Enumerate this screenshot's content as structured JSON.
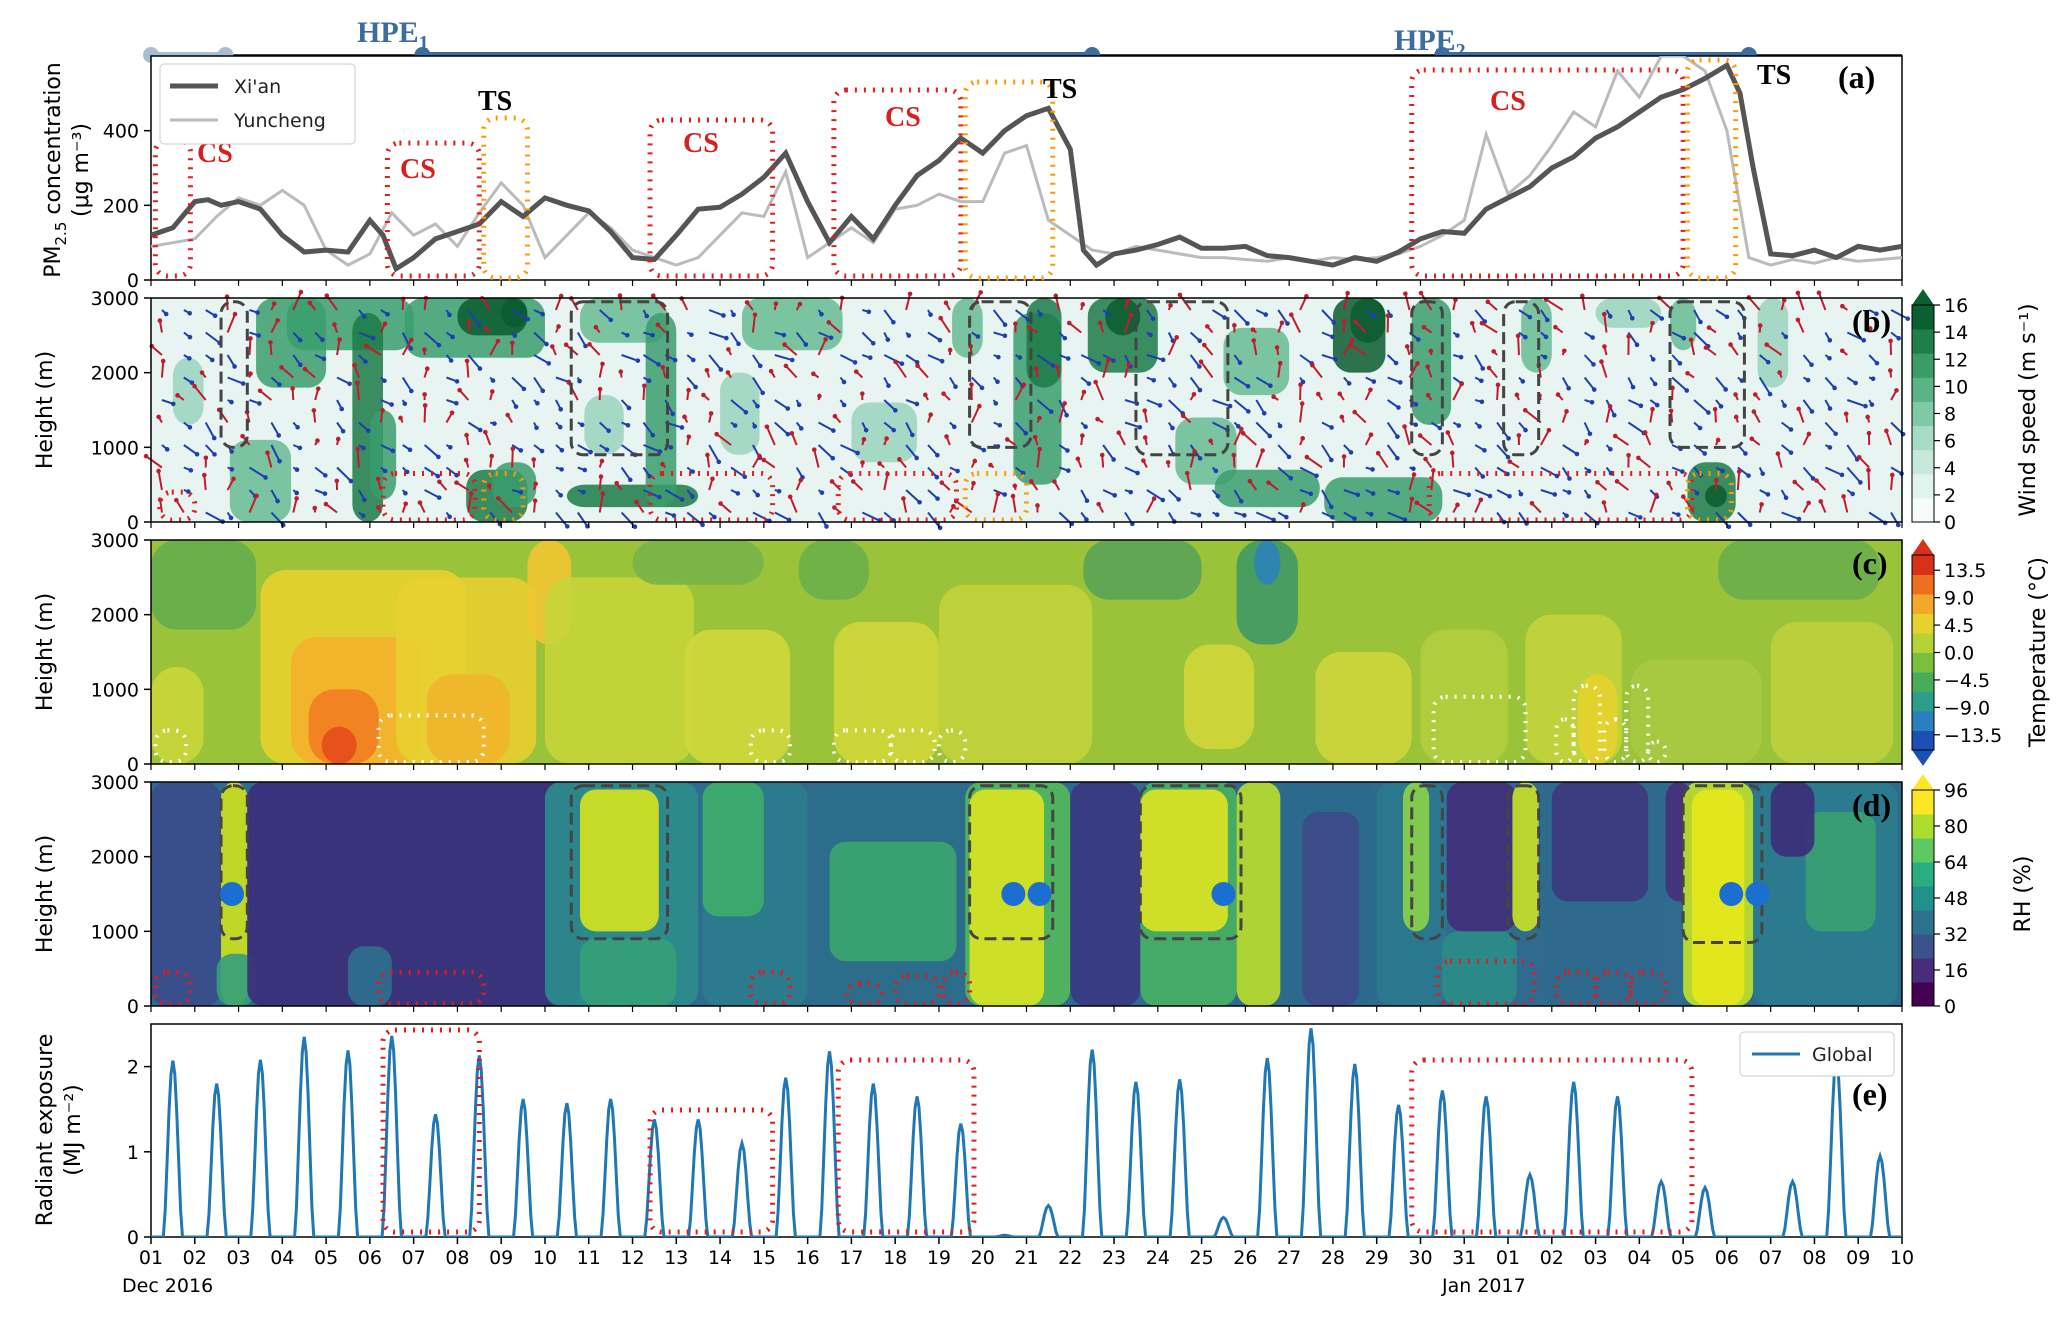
{
  "figure": {
    "date_start_label": "Dec  2016",
    "date_jan_label": "Jan  2017",
    "day_ticks": [
      "01",
      "02",
      "03",
      "04",
      "05",
      "06",
      "07",
      "08",
      "09",
      "10",
      "11",
      "12",
      "13",
      "14",
      "15",
      "16",
      "17",
      "18",
      "19",
      "20",
      "21",
      "22",
      "23",
      "24",
      "25",
      "26",
      "27",
      "28",
      "29",
      "30",
      "31",
      "01",
      "02",
      "03",
      "04",
      "05",
      "06",
      "07",
      "08",
      "09",
      "10"
    ]
  },
  "hpe": {
    "labels": [
      "HPE",
      "HPE"
    ],
    "subscripts": [
      "1",
      "2"
    ],
    "periods": [
      [
        6.2,
        21.5
      ],
      [
        29.5,
        36.5
      ]
    ],
    "pre_period": [
      0,
      1.7
    ]
  },
  "colors": {
    "xian": "#555555",
    "yuncheng": "#bbbbbb",
    "global": "#1f77b4",
    "cs_box": "#e41a1c",
    "ts_box": "#ff9900",
    "grey_box": "#444444",
    "hpe_line": "#3d6d9e",
    "wind_red": "#c21b2d",
    "wind_blue": "#1e3fb0",
    "rh_dot": "#1a6fd0"
  },
  "panels": {
    "a": {
      "label": "(a)",
      "ylabel_line1": "PM",
      "ylabel_sub": "2.5",
      "ylabel_rest": " concentration",
      "ylabel_line2": "(μg m⁻³)"
    },
    "b": {
      "label": "(b)",
      "ylabel": "Height (m)",
      "cbar_label": "Wind speed (m s⁻¹)"
    },
    "c": {
      "label": "(c)",
      "ylabel": "Height (m)",
      "cbar_label": "Temperature (°C)"
    },
    "d": {
      "label": "(d)",
      "ylabel": "Height (m)",
      "cbar_label": "RH (%)"
    },
    "e": {
      "label": "(e)",
      "ylabel_line1": "Radiant exposure",
      "ylabel_line2": "(MJ m⁻²)"
    }
  },
  "annotations": {
    "cs": "CS",
    "ts": "TS"
  },
  "legend_a": [
    "Xi'an",
    "Yuncheng"
  ],
  "legend_e": [
    "Global"
  ],
  "chart_data": [
    {
      "panel": "a",
      "type": "line",
      "xlabel": "",
      "ylabel": "PM2.5 concentration (μg m⁻³)",
      "ylim": [
        0,
        600
      ],
      "yticks": [
        "0",
        "200",
        "400"
      ],
      "series": [
        {
          "name": "Xi'an",
          "x": [
            0,
            0.5,
            1,
            1.3,
            1.6,
            2,
            2.5,
            3,
            3.5,
            4,
            4.5,
            5,
            5.3,
            5.6,
            6,
            6.5,
            7,
            7.5,
            8,
            8.5,
            9,
            9.5,
            10,
            10.5,
            11,
            11.5,
            12,
            12.5,
            13,
            13.5,
            14,
            14.5,
            15,
            15.5,
            16,
            16.5,
            17,
            17.5,
            18,
            18.5,
            19,
            19.5,
            20,
            20.5,
            21,
            21.3,
            21.6,
            22,
            22.5,
            23,
            23.5,
            24,
            24.5,
            25,
            25.5,
            26,
            26.5,
            27,
            27.5,
            28,
            28.5,
            29,
            29.5,
            30,
            30.5,
            31,
            31.5,
            32,
            32.5,
            33,
            33.5,
            34,
            34.5,
            35,
            35.5,
            36,
            36.3,
            36.6,
            37,
            37.5,
            38,
            38.5,
            39,
            39.5,
            40
          ],
          "y": [
            120,
            140,
            210,
            215,
            200,
            210,
            190,
            120,
            75,
            80,
            75,
            160,
            120,
            30,
            60,
            110,
            130,
            150,
            210,
            170,
            220,
            200,
            185,
            130,
            60,
            55,
            120,
            190,
            195,
            230,
            275,
            340,
            210,
            100,
            170,
            110,
            200,
            280,
            320,
            380,
            340,
            400,
            440,
            460,
            350,
            80,
            40,
            70,
            80,
            95,
            115,
            85,
            85,
            90,
            65,
            60,
            50,
            40,
            60,
            50,
            75,
            110,
            130,
            125,
            190,
            220,
            250,
            300,
            330,
            380,
            410,
            450,
            490,
            510,
            540,
            575,
            500,
            300,
            70,
            65,
            80,
            60,
            90,
            80,
            90
          ]
        },
        {
          "name": "Yuncheng",
          "x": [
            0,
            0.5,
            1,
            1.5,
            2,
            2.5,
            3,
            3.5,
            4,
            4.5,
            5,
            5.5,
            6,
            6.5,
            7,
            7.5,
            8,
            8.5,
            9,
            9.5,
            10,
            10.5,
            11,
            11.5,
            12,
            12.5,
            13,
            13.5,
            14,
            14.5,
            15,
            15.5,
            16,
            16.5,
            17,
            17.5,
            18,
            18.5,
            19,
            19.5,
            20,
            20.5,
            21,
            21.5,
            22,
            22.5,
            23,
            23.5,
            24,
            24.5,
            25,
            25.5,
            26,
            26.5,
            27,
            27.5,
            28,
            28.5,
            29,
            29.5,
            30,
            30.5,
            31,
            31.5,
            32,
            32.5,
            33,
            33.5,
            34,
            34.5,
            35,
            35.5,
            36,
            36.5,
            37,
            37.5,
            38,
            38.5,
            39,
            39.5,
            40
          ],
          "y": [
            90,
            100,
            110,
            170,
            220,
            200,
            240,
            200,
            80,
            40,
            70,
            180,
            120,
            150,
            90,
            180,
            260,
            200,
            60,
            120,
            180,
            140,
            80,
            60,
            40,
            60,
            120,
            180,
            170,
            290,
            60,
            100,
            140,
            100,
            190,
            200,
            230,
            210,
            210,
            340,
            360,
            160,
            120,
            80,
            70,
            90,
            80,
            70,
            60,
            60,
            55,
            50,
            60,
            50,
            60,
            55,
            60,
            70,
            90,
            120,
            160,
            390,
            230,
            280,
            360,
            450,
            410,
            560,
            490,
            600,
            600,
            560,
            400,
            60,
            40,
            55,
            45,
            60,
            50,
            55,
            60
          ]
        }
      ]
    },
    {
      "panel": "b",
      "type": "heatmap",
      "title": "",
      "ylabel": "Height (m)",
      "ylim": [
        0,
        3000
      ],
      "yticks": [
        "0",
        "1000",
        "2000",
        "3000"
      ],
      "colorbar_label": "Wind speed (m s⁻¹)",
      "colorbar_ticks": [
        "0",
        "2",
        "4",
        "6",
        "8",
        "10",
        "12",
        "14",
        "16"
      ],
      "colorbar_range": [
        0,
        16
      ]
    },
    {
      "panel": "c",
      "type": "heatmap",
      "ylabel": "Height (m)",
      "ylim": [
        0,
        3000
      ],
      "yticks": [
        "0",
        "1000",
        "2000",
        "3000"
      ],
      "colorbar_label": "Temperature (°C)",
      "colorbar_ticks": [
        "13.5",
        "9.0",
        "4.5",
        "0.0",
        "−4.5",
        "−9.0",
        "−13.5"
      ],
      "colorbar_range": [
        -16,
        16
      ]
    },
    {
      "panel": "d",
      "type": "heatmap",
      "ylabel": "Height (m)",
      "ylim": [
        0,
        3000
      ],
      "yticks": [
        "0",
        "1000",
        "2000",
        "3000"
      ],
      "colorbar_label": "RH (%)",
      "colorbar_ticks": [
        "0",
        "16",
        "32",
        "48",
        "64",
        "80",
        "96"
      ],
      "colorbar_range": [
        0,
        96
      ]
    },
    {
      "panel": "e",
      "type": "line",
      "ylabel": "Radiant exposure (MJ m⁻²)",
      "ylim": [
        0,
        2.5
      ],
      "yticks": [
        "0",
        "1",
        "2"
      ],
      "series": [
        {
          "name": "Global",
          "peak_day": [
            0.5,
            1.5,
            2.5,
            3.5,
            4.5,
            5.5,
            6.5,
            7.5,
            8.5,
            9.5,
            10.5,
            11.5,
            12.5,
            13.5,
            14.5,
            15.5,
            16.5,
            17.5,
            18.5,
            19.5,
            20.5,
            21.5,
            22.5,
            23.5,
            24.5,
            25.5,
            26.5,
            27.5,
            28.5,
            29.5,
            30.5,
            31.5,
            32.5,
            33.5,
            34.5,
            35.5,
            36.5,
            37.5,
            38.5,
            39.5
          ],
          "peak_value": [
            2.07,
            1.8,
            2.08,
            2.35,
            2.19,
            2.36,
            1.44,
            2.13,
            1.62,
            1.57,
            1.62,
            1.38,
            1.38,
            1.1,
            1.87,
            2.18,
            1.8,
            1.65,
            1.33,
            0.02,
            0.37,
            2.2,
            1.82,
            1.85,
            0.23,
            2.1,
            2.45,
            2.03,
            1.55,
            1.72,
            1.65,
            0.73,
            1.82,
            1.65,
            0.65,
            0.58,
            0,
            0.65,
            2.1,
            0.95
          ]
        }
      ]
    }
  ]
}
